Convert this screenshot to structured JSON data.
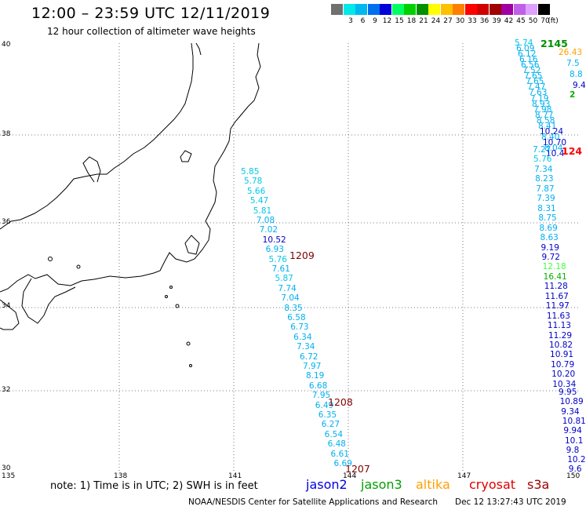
{
  "header": {
    "title": "12:00 – 23:59 UTC 12/11/2019",
    "subtitle": "12 hour collection of altimeter wave heights"
  },
  "legend": {
    "unit": "(ft)",
    "items": [
      {
        "label": "",
        "color": "#707070"
      },
      {
        "label": "3",
        "color": "#00e8e8"
      },
      {
        "label": "6",
        "color": "#00b8f0"
      },
      {
        "label": "9",
        "color": "#0070f0"
      },
      {
        "label": "12",
        "color": "#0000d8"
      },
      {
        "label": "15",
        "color": "#00ff60"
      },
      {
        "label": "18",
        "color": "#00d000"
      },
      {
        "label": "21",
        "color": "#009000"
      },
      {
        "label": "24",
        "color": "#ffff00"
      },
      {
        "label": "27",
        "color": "#ffc000"
      },
      {
        "label": "30",
        "color": "#ff8000"
      },
      {
        "label": "33",
        "color": "#ff0000"
      },
      {
        "label": "36",
        "color": "#d00000"
      },
      {
        "label": "39",
        "color": "#a00000"
      },
      {
        "label": "42",
        "color": "#a000a0"
      },
      {
        "label": "45",
        "color": "#c060e8"
      },
      {
        "label": "50",
        "color": "#e0a0ff"
      },
      {
        "label": "70",
        "color": "#000000"
      }
    ]
  },
  "axes": {
    "lat_labels": [
      "40",
      "38",
      "36",
      "34",
      "32",
      "30"
    ],
    "lon_labels": [
      "135",
      "138",
      "141",
      "144",
      "147",
      "150"
    ]
  },
  "tracks": {
    "west": [
      {
        "v": "5.85",
        "c": "#00c8e8"
      },
      {
        "v": "5.78",
        "c": "#00c8e8"
      },
      {
        "v": "5.66",
        "c": "#00c8e8"
      },
      {
        "v": "5.47",
        "c": "#00c8e8"
      },
      {
        "v": "5.81",
        "c": "#00c8e8"
      },
      {
        "v": "7.08",
        "c": "#00b0f0"
      },
      {
        "v": "7.02",
        "c": "#00b0f0"
      },
      {
        "v": "10.52",
        "c": "#0000c8"
      },
      {
        "v": "6.93",
        "c": "#00b0f0"
      },
      {
        "v": "5.76",
        "c": "#00c8e8"
      },
      {
        "v": "7.61",
        "c": "#00b0f0"
      },
      {
        "v": "5.87",
        "c": "#00c8e8"
      },
      {
        "v": "7.74",
        "c": "#00b0f0"
      },
      {
        "v": "7.04",
        "c": "#00b0f0"
      },
      {
        "v": "8.35",
        "c": "#00b0f0"
      },
      {
        "v": "6.58",
        "c": "#00b0f0"
      },
      {
        "v": "6.73",
        "c": "#00b0f0"
      },
      {
        "v": "6.34",
        "c": "#00b0f0"
      },
      {
        "v": "7.34",
        "c": "#00b0f0"
      },
      {
        "v": "6.72",
        "c": "#00b0f0"
      },
      {
        "v": "7.97",
        "c": "#00b0f0"
      },
      {
        "v": "8.19",
        "c": "#00b0f0"
      },
      {
        "v": "6.68",
        "c": "#00b0f0"
      },
      {
        "v": "7.95",
        "c": "#00b0f0"
      },
      {
        "v": "6.49",
        "c": "#00b0f0"
      },
      {
        "v": "6.35",
        "c": "#00b0f0"
      },
      {
        "v": "6.27",
        "c": "#00b0f0"
      },
      {
        "v": "6.54",
        "c": "#00b0f0"
      },
      {
        "v": "6.48",
        "c": "#00b0f0"
      },
      {
        "v": "6.61",
        "c": "#00b0f0"
      },
      {
        "v": "6.69",
        "c": "#00b0f0"
      }
    ],
    "east_upper": [
      {
        "v": "5.74",
        "c": "#00c8e8"
      },
      {
        "v": "6.09",
        "c": "#00b0f0"
      },
      {
        "v": "6.12",
        "c": "#00b0f0"
      },
      {
        "v": "6.16",
        "c": "#00b0f0"
      },
      {
        "v": "6.56",
        "c": "#00b0f0"
      },
      {
        "v": "7.52",
        "c": "#00b0f0"
      },
      {
        "v": "7.65",
        "c": "#00b0f0"
      },
      {
        "v": "7.65",
        "c": "#00b0f0"
      },
      {
        "v": "7.47",
        "c": "#00b0f0"
      },
      {
        "v": "7.63",
        "c": "#00b0f0"
      },
      {
        "v": "7.19",
        "c": "#00b0f0"
      },
      {
        "v": "8.93",
        "c": "#00b0f0"
      },
      {
        "v": "7.98",
        "c": "#00b0f0"
      },
      {
        "v": "8.77",
        "c": "#00b0f0"
      },
      {
        "v": "8.58",
        "c": "#00b0f0"
      },
      {
        "v": "8.41",
        "c": "#00b0f0"
      },
      {
        "v": "10.24",
        "c": "#0000c8"
      },
      {
        "v": "8.40",
        "c": "#00b0f0"
      },
      {
        "v": "10.70",
        "c": "#0000c8"
      },
      {
        "v": "8.04",
        "c": "#00b0f0"
      },
      {
        "v": "10.4",
        "c": "#0000c8"
      }
    ],
    "east_col": [
      {
        "v": "7.27",
        "c": "#00b0f0"
      },
      {
        "v": "5.76",
        "c": "#00c8e8"
      },
      {
        "v": "7.34",
        "c": "#00b0f0"
      },
      {
        "v": "8.23",
        "c": "#00b0f0"
      },
      {
        "v": "7.87",
        "c": "#00b0f0"
      },
      {
        "v": "7.39",
        "c": "#00b0f0"
      },
      {
        "v": "8.31",
        "c": "#00b0f0"
      },
      {
        "v": "8.75",
        "c": "#00b0f0"
      },
      {
        "v": "8.69",
        "c": "#00b0f0"
      },
      {
        "v": "8.63",
        "c": "#00b0f0"
      },
      {
        "v": "9.19",
        "c": "#0000c8"
      },
      {
        "v": "9.72",
        "c": "#0000c8"
      },
      {
        "v": "12.18",
        "c": "#40ff40"
      },
      {
        "v": "16.41",
        "c": "#00b000"
      },
      {
        "v": "11.28",
        "c": "#0000c8"
      },
      {
        "v": "11.67",
        "c": "#0000c8"
      },
      {
        "v": "11.97",
        "c": "#0000c8"
      },
      {
        "v": "11.63",
        "c": "#0000c8"
      },
      {
        "v": "11.13",
        "c": "#0000c8"
      },
      {
        "v": "11.29",
        "c": "#0000c8"
      },
      {
        "v": "10.82",
        "c": "#0000c8"
      },
      {
        "v": "10.91",
        "c": "#0000c8"
      },
      {
        "v": "10.79",
        "c": "#0000c8"
      },
      {
        "v": "10.20",
        "c": "#0000c8"
      },
      {
        "v": "10.34",
        "c": "#0000c8"
      }
    ],
    "east_lower": [
      {
        "v": "9.95",
        "c": "#0000c8"
      },
      {
        "v": "10.89",
        "c": "#0000c8"
      },
      {
        "v": "9.34",
        "c": "#0000c8"
      },
      {
        "v": "10.81",
        "c": "#0000c8"
      },
      {
        "v": "9.94",
        "c": "#0000c8"
      },
      {
        "v": "10.1",
        "c": "#0000c8"
      },
      {
        "v": "9.8",
        "c": "#0000c8"
      },
      {
        "v": "10.2",
        "c": "#0000c8"
      },
      {
        "v": "9.6",
        "c": "#0000c8"
      }
    ],
    "extras": [
      {
        "v": "8.8",
        "c": "#00b0f0"
      },
      {
        "v": "9.4",
        "c": "#0000c8"
      },
      {
        "v": "7.5",
        "c": "#00b0f0"
      },
      {
        "v": "26.43",
        "c": "#ffa000"
      },
      {
        "v": "2",
        "c": "#00b000"
      }
    ]
  },
  "pass_ids": {
    "p1209": "1209",
    "p1208": "1208",
    "p1207": "1207",
    "p2145": "2145",
    "p124": "124"
  },
  "note": "note:  1) Time is in UTC;  2) SWH is in feet",
  "satellites": [
    {
      "name": "jason2",
      "color": "#0000e0"
    },
    {
      "name": "jason3",
      "color": "#00a000"
    },
    {
      "name": "altika",
      "color": "#ffa000"
    },
    {
      "name": "cryosat",
      "color": "#e00000"
    },
    {
      "name": "s3a",
      "color": "#a00000"
    }
  ],
  "footer": {
    "credit": "NOAA/NESDIS Center for Satellite Applications and Research",
    "timestamp": "Dec 12 13:27:43 UTC 2019"
  }
}
